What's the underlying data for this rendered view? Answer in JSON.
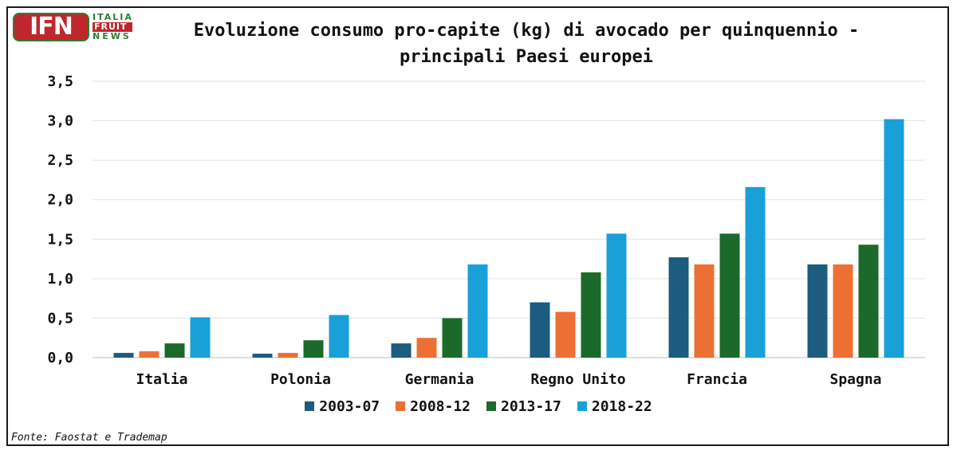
{
  "logo": {
    "mark": "IFN",
    "line1": "ITALIA",
    "line2": "FRUIT",
    "line3": "NEWS"
  },
  "title_line1": "Evoluzione consumo pro-capite (kg) di avocado per quinquennio -",
  "title_line2": "principali Paesi europei",
  "source": "Fonte: Faostat e Trademap",
  "chart_data": {
    "type": "bar",
    "title": "Evoluzione consumo pro-capite (kg) di avocado per quinquennio - principali Paesi europei",
    "categories": [
      "Italia",
      "Polonia",
      "Germania",
      "Regno Unito",
      "Francia",
      "Spagna"
    ],
    "series": [
      {
        "name": "2003-07",
        "color": "#1b5c80",
        "values": [
          0.06,
          0.05,
          0.18,
          0.7,
          1.27,
          1.18
        ]
      },
      {
        "name": "2008-12",
        "color": "#ec7034",
        "values": [
          0.08,
          0.06,
          0.25,
          0.58,
          1.18,
          1.18
        ]
      },
      {
        "name": "2013-17",
        "color": "#1b6a2b",
        "values": [
          0.18,
          0.22,
          0.5,
          1.08,
          1.57,
          1.43
        ]
      },
      {
        "name": "2018-22",
        "color": "#1aa0d8",
        "values": [
          0.51,
          0.54,
          1.18,
          1.57,
          2.16,
          3.02
        ]
      }
    ],
    "yticks": [
      "0,0",
      "0,5",
      "1,0",
      "1,5",
      "2,0",
      "2,5",
      "3,0",
      "3,5"
    ],
    "ylim": [
      0,
      3.5
    ],
    "xlabel": "",
    "ylabel": "",
    "grid": true,
    "legend": "bottom"
  }
}
